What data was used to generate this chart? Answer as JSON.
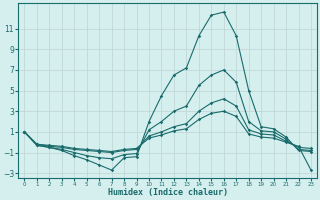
{
  "xlabel": "Humidex (Indice chaleur)",
  "bg_color": "#d5efef",
  "grid_color": "#c2d8d8",
  "line_color": "#1a6b6b",
  "x_values": [
    0,
    1,
    2,
    3,
    4,
    5,
    6,
    7,
    8,
    9,
    10,
    11,
    12,
    13,
    14,
    15,
    16,
    17,
    18,
    19,
    20,
    21,
    22,
    23
  ],
  "series1": [
    1.0,
    -0.3,
    -0.5,
    -0.8,
    -1.3,
    -1.7,
    -2.2,
    -2.7,
    -1.5,
    -1.4,
    2.0,
    4.5,
    6.5,
    7.2,
    10.3,
    12.3,
    12.6,
    10.3,
    5.0,
    1.5,
    1.3,
    0.5,
    -0.8,
    -0.9
  ],
  "series2": [
    1.0,
    -0.3,
    -0.5,
    -0.7,
    -1.0,
    -1.3,
    -1.5,
    -1.6,
    -1.2,
    -1.1,
    1.2,
    2.0,
    3.0,
    3.5,
    5.5,
    6.5,
    7.0,
    5.8,
    2.0,
    1.1,
    1.0,
    0.3,
    -0.7,
    -0.8
  ],
  "series3": [
    1.0,
    -0.2,
    -0.4,
    -0.5,
    -0.7,
    -0.8,
    -0.9,
    -1.0,
    -0.8,
    -0.7,
    0.6,
    1.0,
    1.5,
    1.8,
    3.0,
    3.8,
    4.2,
    3.5,
    1.2,
    0.8,
    0.7,
    0.1,
    -0.5,
    -0.6
  ],
  "series4": [
    1.0,
    -0.2,
    -0.3,
    -0.4,
    -0.6,
    -0.7,
    -0.8,
    -0.9,
    -0.7,
    -0.6,
    0.4,
    0.7,
    1.1,
    1.3,
    2.2,
    2.8,
    3.0,
    2.5,
    0.8,
    0.5,
    0.4,
    0.0,
    -0.4,
    -2.7
  ],
  "ylim": [
    -3.5,
    13.5
  ],
  "yticks": [
    -3,
    -1,
    1,
    3,
    5,
    7,
    9,
    11
  ],
  "xlim": [
    -0.5,
    23.5
  ],
  "xtick_labels": [
    "0",
    "1",
    "2",
    "3",
    "4",
    "5",
    "6",
    "7",
    "8",
    "9",
    "10",
    "11",
    "12",
    "13",
    "14",
    "15",
    "16",
    "17",
    "18",
    "19",
    "20",
    "21",
    "22",
    "23"
  ]
}
